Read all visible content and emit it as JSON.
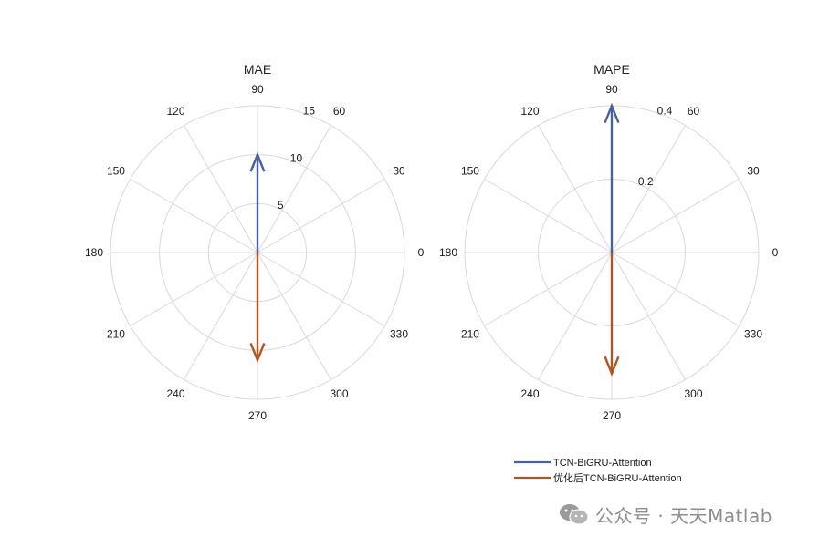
{
  "chart_data": [
    {
      "type": "polar-compass",
      "title": "MAE",
      "rlim": [
        0,
        15
      ],
      "r_ticks": [
        "5",
        "10",
        "15"
      ],
      "theta_ticks": [
        "0",
        "30",
        "60",
        "90",
        "120",
        "150",
        "180",
        "210",
        "240",
        "270",
        "300",
        "330"
      ],
      "grid": true,
      "series": [
        {
          "name": "TCN-BiGRU-Attention",
          "angle_deg": 90,
          "value": 10.0,
          "color": "#4a6199"
        },
        {
          "name": "优化后TCN-BiGRU-Attention",
          "angle_deg": 270,
          "value": 11.0,
          "color": "#b35424"
        }
      ]
    },
    {
      "type": "polar-compass",
      "title": "MAPE",
      "rlim": [
        0,
        0.4
      ],
      "r_ticks": [
        "0.2",
        "0.4"
      ],
      "theta_ticks": [
        "0",
        "30",
        "60",
        "90",
        "120",
        "150",
        "180",
        "210",
        "240",
        "270",
        "300",
        "330"
      ],
      "grid": true,
      "series": [
        {
          "name": "TCN-BiGRU-Attention",
          "angle_deg": 90,
          "value": 0.4,
          "color": "#4a6199"
        },
        {
          "name": "优化后TCN-BiGRU-Attention",
          "angle_deg": 270,
          "value": 0.33,
          "color": "#b35424"
        }
      ]
    }
  ],
  "legend": {
    "placement": "bottom-right",
    "items": [
      {
        "label": "TCN-BiGRU-Attention",
        "color": "#4a6199"
      },
      {
        "label": "优化后TCN-BiGRU-Attention",
        "color": "#b35424"
      }
    ]
  },
  "watermark": {
    "text": "公众号 · 天天Matlab",
    "icon": "wechat-icon"
  }
}
